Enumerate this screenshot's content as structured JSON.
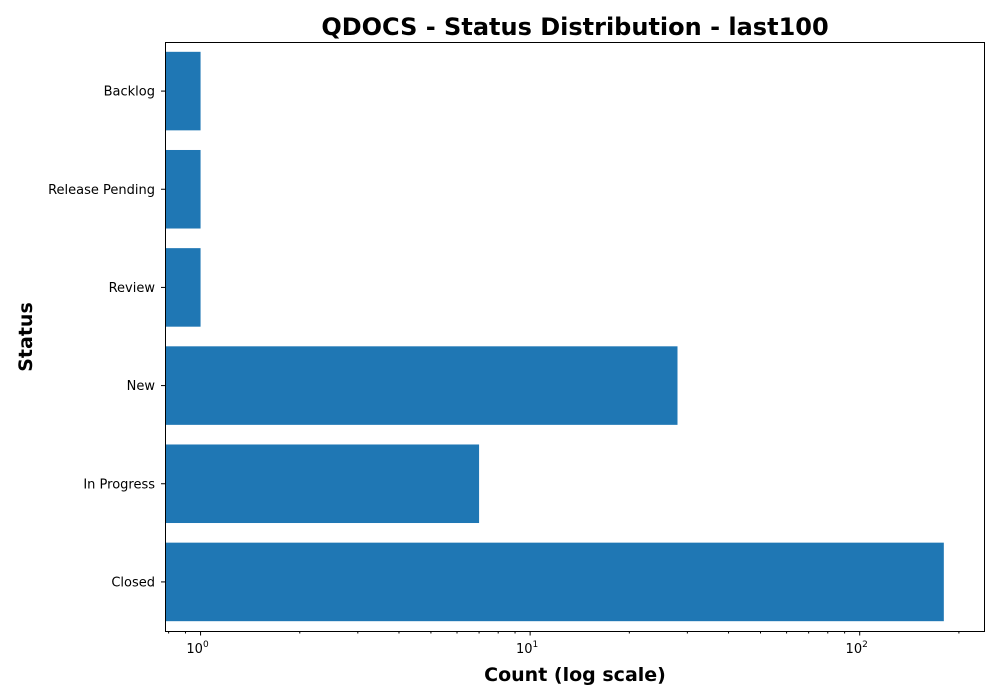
{
  "chart_data": {
    "type": "bar",
    "orientation": "horizontal",
    "title": "QDOCS - Status Distribution - last100",
    "xlabel": "Count (log scale)",
    "ylabel": "Status",
    "xscale": "log",
    "xlim": [
      0.78,
      240
    ],
    "categories": [
      "Closed",
      "In Progress",
      "New",
      "Review",
      "Release Pending",
      "Backlog"
    ],
    "values": [
      180,
      7,
      28,
      1,
      1,
      1
    ],
    "x_ticks": [
      {
        "base": "10",
        "exp": "0",
        "value": 1
      },
      {
        "base": "10",
        "exp": "1",
        "value": 10
      },
      {
        "base": "10",
        "exp": "2",
        "value": 100
      }
    ],
    "bar_color": "#1f77b4",
    "grid": false,
    "legend": "none"
  }
}
